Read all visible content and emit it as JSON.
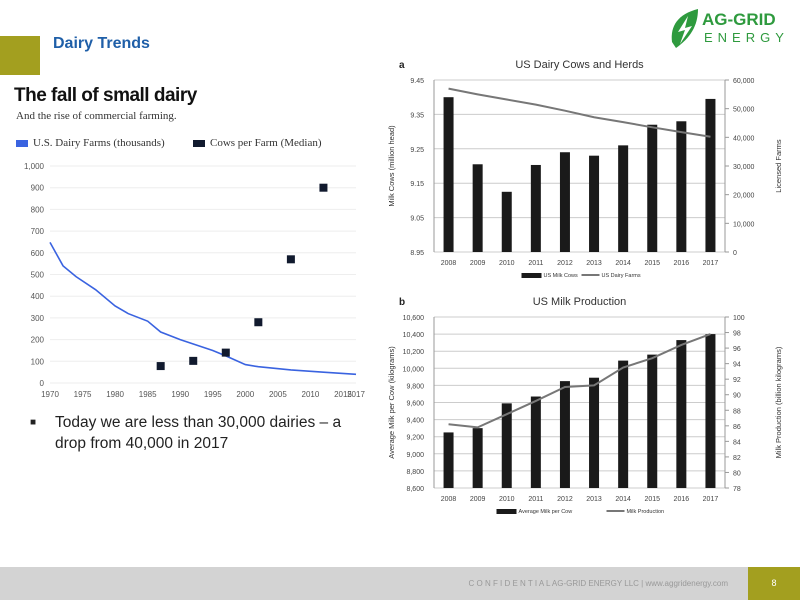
{
  "slide": {
    "title": "Dairy Trends",
    "page": "8",
    "footer": "C O N F I D E N T I A L AG-GRID ENERGY LLC  |  www.aggridenergy.com",
    "logo": {
      "line1": "AG-GRID",
      "line2": "ENERGY"
    },
    "bullet": "Today we are less than 30,000 dairies – a drop from 40,000 in 2017",
    "colors": {
      "accent": "#a39f1f",
      "title": "#1f5fa8",
      "logo": "#2e9a3e"
    }
  },
  "chart_data": [
    {
      "type": "line",
      "title": "The fall of small dairy",
      "subtitle": "And the rise of commercial farming.",
      "legend": [
        "U.S. Dairy Farms (thousands)",
        "Cows per Farm (Median)"
      ],
      "legend_placement": "top-left",
      "xlim": [
        1970,
        2017
      ],
      "ylim": [
        0,
        1000
      ],
      "xticks": [
        "1970",
        "1975",
        "1980",
        "1985",
        "1990",
        "1995",
        "2000",
        "2005",
        "2010",
        "2015",
        "2017"
      ],
      "yticks": [
        "0",
        "100",
        "200",
        "300",
        "400",
        "500",
        "600",
        "700",
        "800",
        "900",
        "1,000"
      ],
      "series": [
        {
          "name": "U.S. Dairy Farms (thousands)",
          "type": "line",
          "color": "#3a63e0",
          "x": [
            1970,
            1972,
            1974,
            1977,
            1980,
            1982,
            1985,
            1987,
            1990,
            1995,
            1997,
            2000,
            2002,
            2007,
            2012,
            2017
          ],
          "y": [
            648,
            540,
            490,
            430,
            355,
            320,
            285,
            235,
            200,
            150,
            125,
            85,
            75,
            60,
            50,
            40
          ]
        },
        {
          "name": "Cows per Farm (Median)",
          "type": "scatter",
          "color": "#111a2e",
          "x": [
            1987,
            1992,
            1997,
            2002,
            2007,
            2012
          ],
          "y": [
            78,
            102,
            140,
            280,
            570,
            900
          ]
        }
      ]
    },
    {
      "type": "bar",
      "label": "a",
      "title": "US  Dairy Cows and Herds",
      "categories": [
        "2008",
        "2009",
        "2010",
        "2011",
        "2012",
        "2013",
        "2014",
        "2015",
        "2016",
        "2017"
      ],
      "ylabel": "Milk Cows (million head)",
      "y2label": "Licensed Farms",
      "ylim": [
        8.95,
        9.45
      ],
      "y2lim": [
        0,
        60000
      ],
      "yticks": [
        "8.95",
        "9.05",
        "9.15",
        "9.25",
        "9.35",
        "9.45"
      ],
      "y2ticks": [
        "0",
        "10,000",
        "20,000",
        "30,000",
        "40,000",
        "50,000",
        "60,000"
      ],
      "series": [
        {
          "name": "US Milk Cows",
          "type": "bar",
          "values": [
            9.4,
            9.205,
            9.125,
            9.203,
            9.24,
            9.23,
            9.26,
            9.32,
            9.33,
            9.395
          ]
        },
        {
          "name": "US Dairy Farms",
          "type": "line",
          "axis": "right",
          "values": [
            57000,
            55000,
            53200,
            51400,
            49300,
            47000,
            45300,
            43500,
            41800,
            40200
          ]
        }
      ]
    },
    {
      "type": "bar",
      "label": "b",
      "title": "US Milk Production",
      "categories": [
        "2008",
        "2009",
        "2010",
        "2011",
        "2012",
        "2013",
        "2014",
        "2015",
        "2016",
        "2017"
      ],
      "ylabel": "Average Milk per Cow (kilograms)",
      "y2label": "Milk Production (billion kilograms)",
      "ylim": [
        8600,
        10600
      ],
      "y2lim": [
        78,
        100
      ],
      "yticks": [
        "8,600",
        "8,800",
        "9,000",
        "9,200",
        "9,400",
        "9,600",
        "9,800",
        "10,000",
        "10,200",
        "10,400",
        "10,600"
      ],
      "y2ticks": [
        "78",
        "80",
        "82",
        "84",
        "86",
        "88",
        "90",
        "92",
        "94",
        "96",
        "98",
        "100"
      ],
      "series": [
        {
          "name": "Average Milk per Cow",
          "type": "bar",
          "values": [
            9250,
            9300,
            9590,
            9670,
            9850,
            9890,
            10090,
            10160,
            10330,
            10400
          ]
        },
        {
          "name": "Milk Production",
          "type": "line",
          "axis": "right",
          "values": [
            86.2,
            85.8,
            87.5,
            89.2,
            91.0,
            91.2,
            93.5,
            94.7,
            96.4,
            97.8
          ]
        }
      ]
    }
  ]
}
